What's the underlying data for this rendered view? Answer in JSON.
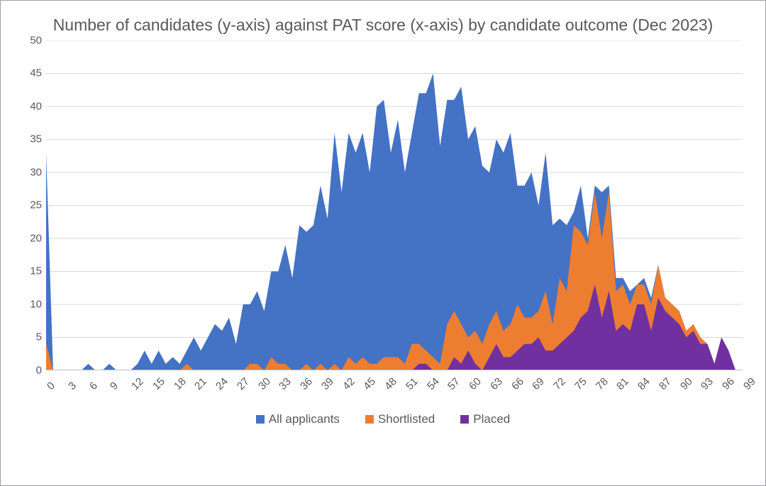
{
  "chart": {
    "type": "area",
    "title": "Number of candidates (y-axis) against PAT score (x-axis) by candidate outcome (Dec 2023)",
    "title_fontsize": 23,
    "title_color": "#595959",
    "label_fontsize": 15,
    "label_color": "#595959",
    "background_color": "#ffffff",
    "border_color": "#9aa0a6",
    "grid_color": "#d9d9d9",
    "axis_color": "#bfbfbf",
    "ylim": [
      0,
      50
    ],
    "ytick_step": 5,
    "xlim": [
      0,
      99
    ],
    "xtick_step": 3,
    "legend_position": "bottom-center",
    "legend_fontsize": 17,
    "series": [
      {
        "name": "All applicants",
        "color": "#4472c4",
        "data": [
          33,
          0,
          0,
          0,
          0,
          0,
          1,
          0,
          0,
          1,
          0,
          0,
          0,
          1,
          3,
          1,
          3,
          1,
          2,
          1,
          3,
          5,
          3,
          5,
          7,
          6,
          8,
          4,
          10,
          10,
          12,
          9,
          15,
          15,
          19,
          14,
          22,
          21,
          22,
          28,
          23,
          36,
          27,
          36,
          33,
          36,
          30,
          40,
          41,
          33,
          38,
          30,
          36,
          42,
          42,
          45,
          34,
          41,
          41,
          43,
          35,
          37,
          31,
          30,
          35,
          33,
          36,
          28,
          28,
          30,
          25,
          33,
          22,
          23,
          22,
          24,
          28,
          20,
          28,
          27,
          28,
          14,
          14,
          12,
          13,
          14,
          11,
          16,
          11,
          10,
          9,
          6,
          7,
          5,
          4,
          1,
          5,
          3,
          0,
          0
        ]
      },
      {
        "name": "Shortlisted",
        "color": "#ed7d31",
        "data": [
          4,
          0,
          0,
          0,
          0,
          0,
          0,
          0,
          0,
          0,
          0,
          0,
          0,
          0,
          0,
          0,
          0,
          0,
          0,
          0,
          1,
          0,
          0,
          0,
          0,
          0,
          0,
          0,
          0,
          1,
          1,
          0,
          2,
          1,
          1,
          0,
          0,
          1,
          0,
          1,
          0,
          1,
          0,
          2,
          1,
          2,
          1,
          1,
          2,
          2,
          2,
          1,
          4,
          4,
          3,
          2,
          1,
          7,
          9,
          7,
          5,
          6,
          4,
          7,
          9,
          6,
          7,
          10,
          8,
          8,
          9,
          12,
          7,
          14,
          12,
          22,
          21,
          19,
          27,
          20,
          27,
          12,
          13,
          10,
          13,
          13,
          10,
          16,
          11,
          10,
          9,
          6,
          7,
          5,
          4,
          1,
          5,
          3,
          0,
          0
        ]
      },
      {
        "name": "Placed",
        "color": "#7030a0",
        "data": [
          0,
          0,
          0,
          0,
          0,
          0,
          0,
          0,
          0,
          0,
          0,
          0,
          0,
          0,
          0,
          0,
          0,
          0,
          0,
          0,
          0,
          0,
          0,
          0,
          0,
          0,
          0,
          0,
          0,
          0,
          0,
          0,
          0,
          0,
          0,
          0,
          0,
          0,
          0,
          0,
          0,
          0,
          0,
          0,
          0,
          0,
          0,
          0,
          0,
          0,
          0,
          0,
          0,
          1,
          1,
          0,
          0,
          0,
          2,
          1,
          3,
          1,
          0,
          2,
          4,
          2,
          2,
          3,
          4,
          4,
          5,
          3,
          3,
          4,
          5,
          6,
          8,
          9,
          13,
          8,
          12,
          6,
          7,
          6,
          10,
          10,
          6,
          11,
          9,
          8,
          7,
          5,
          6,
          4,
          4,
          1,
          5,
          3,
          0,
          0
        ]
      }
    ]
  }
}
